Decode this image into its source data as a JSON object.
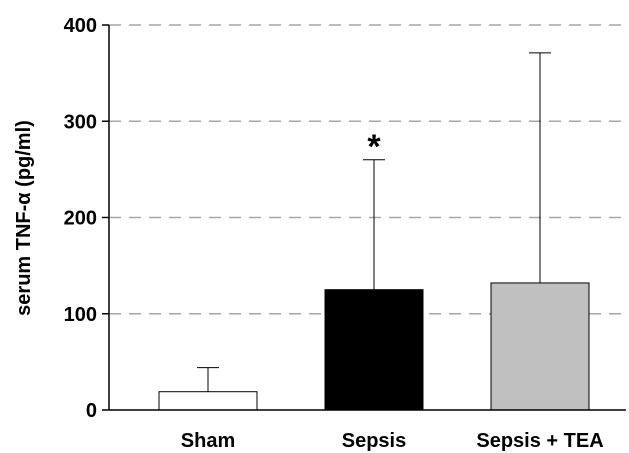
{
  "chart_data": {
    "type": "bar",
    "categories": [
      "Sham",
      "Sepsis",
      "Sepsis + TEA"
    ],
    "values": [
      19,
      125,
      132
    ],
    "error_upper": [
      44,
      260,
      371
    ],
    "bar_colors": [
      "#ffffff",
      "#000000",
      "#c0c0c0"
    ],
    "ylabel": "serum TNF-α (pg/ml)",
    "ylim": [
      0,
      400
    ],
    "yticks": [
      0,
      100,
      200,
      300,
      400
    ],
    "ytick_labels": [
      "0",
      "100",
      "200",
      "300",
      "400"
    ],
    "grid": "horizontal dashed",
    "annotations": [
      {
        "category": "Sepsis",
        "text": "*"
      }
    ]
  }
}
